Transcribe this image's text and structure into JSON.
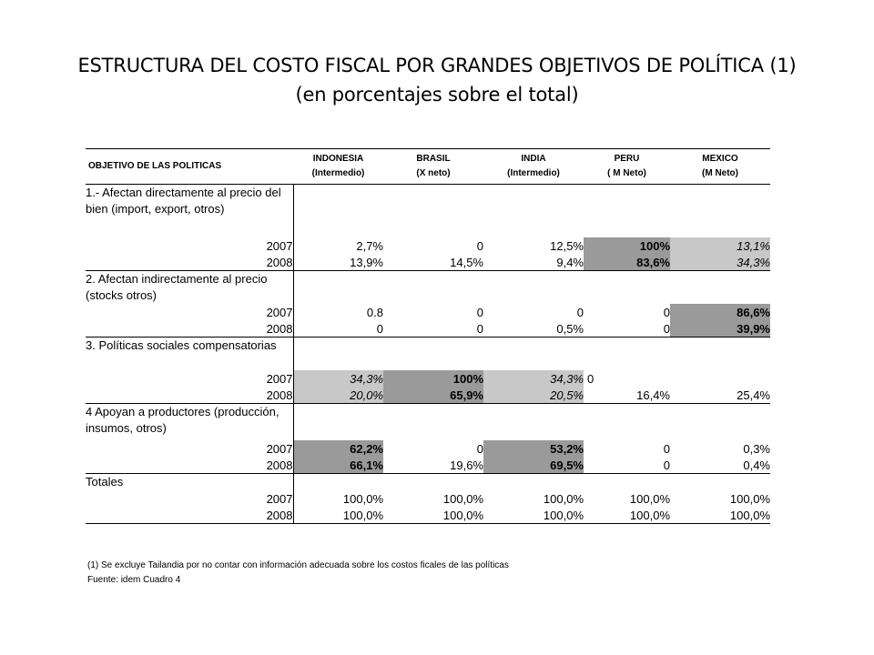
{
  "title": {
    "line1": "ESTRUCTURA DEL COSTO FISCAL POR GRANDES OBJETIVOS DE POLÍTICA (1)",
    "line2": "(en porcentajes sobre el total)"
  },
  "table": {
    "header_label": "OBJETIVO DE LAS POLITICAS",
    "columns": [
      {
        "name": "INDONESIA",
        "sub": "(Intermedio)"
      },
      {
        "name": "BRASIL",
        "sub": "(X neto)"
      },
      {
        "name": "INDIA",
        "sub": "(Intermedio)"
      },
      {
        "name": "PERU",
        "sub": "( M Neto)"
      },
      {
        "name": "MEXICO",
        "sub": "(M Neto)"
      }
    ],
    "sections": [
      {
        "label": "1.- Afectan directamente al precio del bien (import, export, otros)",
        "rows": [
          {
            "year": "2007",
            "values": [
              "2,7%",
              "0",
              "12,5%",
              "100%",
              "13,1%"
            ]
          },
          {
            "year": "2008",
            "values": [
              "13,9%",
              "14,5%",
              "9,4%",
              "83,6%",
              "34,3%"
            ]
          }
        ]
      },
      {
        "label": "2.  Afectan indirectamente al precio (stocks otros)",
        "rows": [
          {
            "year": "2007",
            "values": [
              "0.8",
              "0",
              "0",
              "0",
              "86,6%"
            ]
          },
          {
            "year": "2008",
            "values": [
              "0",
              "0",
              "0,5%",
              "0",
              "39,9%"
            ]
          }
        ]
      },
      {
        "label": "3. Políticas sociales compensatorias",
        "rows": [
          {
            "year": "2007",
            "values": [
              "34,3%",
              "100%",
              "34,3%",
              "0",
              ""
            ]
          },
          {
            "year": "2008",
            "values": [
              "20,0%",
              "65,9%",
              "20,5%",
              "16,4%",
              "25,4%"
            ]
          }
        ]
      },
      {
        "label": "4 Apoyan a productores (producción, insumos, otros)",
        "rows": [
          {
            "year": "2007",
            "values": [
              "62,2%",
              "0",
              "53,2%",
              "0",
              "0,3%"
            ]
          },
          {
            "year": "2008",
            "values": [
              "66,1%",
              "19,6%",
              "69,5%",
              "0",
              "0,4%"
            ]
          }
        ]
      },
      {
        "label": "Totales",
        "rows": [
          {
            "year": "2007",
            "values": [
              "100,0%",
              "100,0%",
              "100,0%",
              "100,0%",
              "100,0%"
            ]
          },
          {
            "year": "2008",
            "values": [
              "100,0%",
              "100,0%",
              "100,0%",
              "100,0%",
              "100,0%"
            ]
          }
        ]
      }
    ]
  },
  "notes": {
    "note1": "(1)  Se excluye Tailandia  por no contar con información adecuada sobre los costos ficales de las políticas",
    "source": "Fuente:  idem Cuadro 4"
  }
}
